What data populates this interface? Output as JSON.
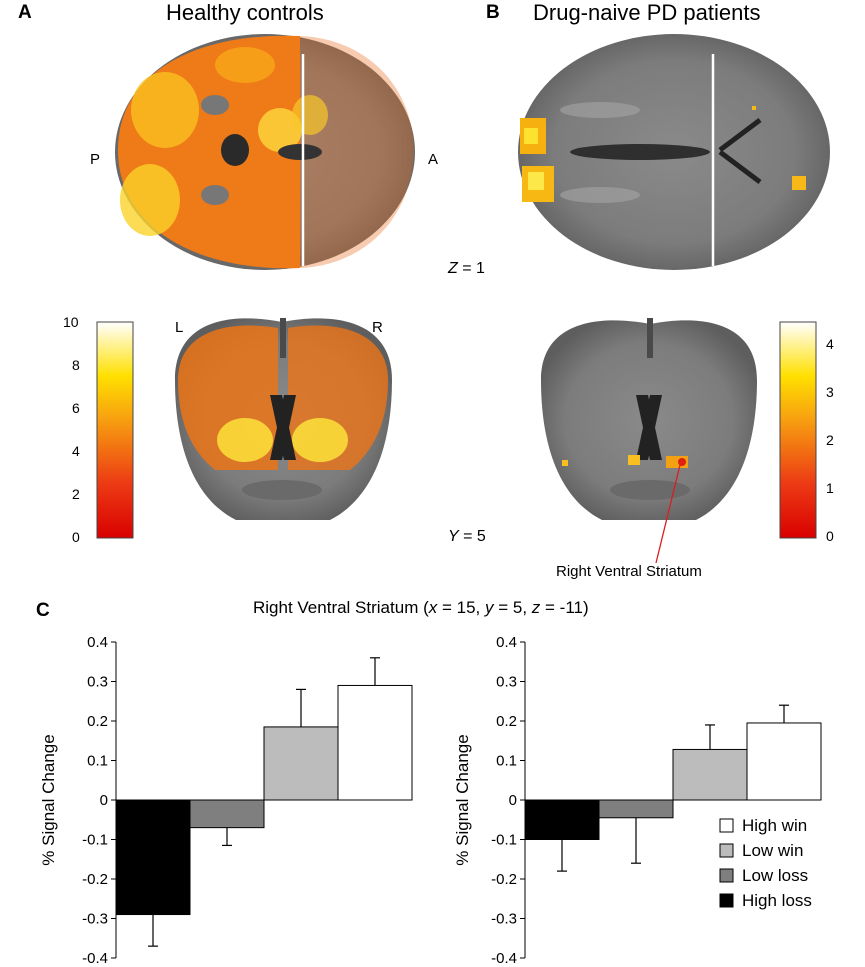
{
  "panels": {
    "a": {
      "letter": "A",
      "title": "Healthy controls"
    },
    "b": {
      "letter": "B",
      "title": "Drug-naive PD patients"
    },
    "c": {
      "letter": "C"
    }
  },
  "orientation": {
    "posterior": "P",
    "anterior": "A",
    "left": "L",
    "right": "R"
  },
  "slices": {
    "axial": {
      "axis": "Z",
      "value": "1"
    },
    "coronal": {
      "axis": "Y",
      "value": "5"
    }
  },
  "colorbars": {
    "controls": {
      "ticks": [
        "10",
        "8",
        "6",
        "4",
        "2",
        "0"
      ],
      "range": [
        0,
        10
      ]
    },
    "patients": {
      "ticks": [
        "4",
        "3",
        "2",
        "1",
        "0"
      ],
      "range": [
        0,
        4.5
      ]
    }
  },
  "annotation": {
    "label": "Right Ventral Striatum"
  },
  "roi_title": {
    "name": "Right Ventral Striatum",
    "x": "15",
    "y": "5",
    "z": "-11"
  },
  "chart_data": [
    {
      "type": "bar",
      "ylabel": "% Signal Change",
      "ylim": [
        -0.4,
        0.4
      ],
      "yticks": [
        "0.4",
        "0.3",
        "0.2",
        "0.1",
        "0",
        "-0.1",
        "-0.2",
        "-0.3",
        "-0.4"
      ],
      "categories": [
        "High loss",
        "Low loss",
        "Low win",
        "High win"
      ],
      "values": [
        -0.29,
        -0.07,
        0.185,
        0.29
      ],
      "errors": [
        0.08,
        0.045,
        0.095,
        0.07
      ],
      "colors": [
        "#000000",
        "#7f7f7f",
        "#bcbcbc",
        "#ffffff"
      ]
    },
    {
      "type": "bar",
      "ylabel": "% Signal Change",
      "ylim": [
        -0.4,
        0.4
      ],
      "yticks": [
        "0.4",
        "0.3",
        "0.2",
        "0.1",
        "0",
        "-0.1",
        "-0.2",
        "-0.3",
        "-0.4"
      ],
      "categories": [
        "High loss",
        "Low loss",
        "Low win",
        "High win"
      ],
      "values": [
        -0.1,
        -0.045,
        0.128,
        0.195
      ],
      "errors": [
        0.08,
        0.115,
        0.062,
        0.045
      ],
      "colors": [
        "#000000",
        "#7f7f7f",
        "#bcbcbc",
        "#ffffff"
      ]
    }
  ],
  "legend": {
    "placement": "bottom-right",
    "items": [
      {
        "label": "High win",
        "color": "#ffffff"
      },
      {
        "label": "Low win",
        "color": "#bcbcbc"
      },
      {
        "label": "Low loss",
        "color": "#7f7f7f"
      },
      {
        "label": "High loss",
        "color": "#000000"
      }
    ]
  }
}
